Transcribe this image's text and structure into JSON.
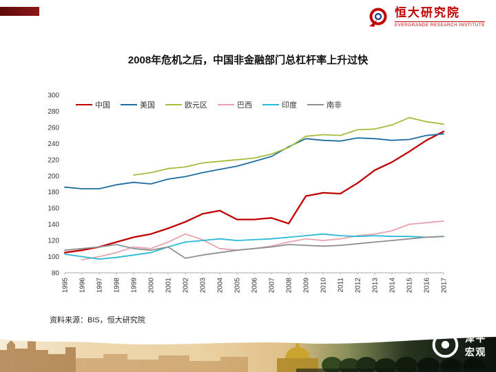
{
  "header": {
    "logo_cn": "恒大研究院",
    "logo_en": "EVERGRANDE RESEARCH INSTITUTE"
  },
  "slide": {
    "title": "2008年危机之后，中国非金融部门总杠杆率上升过快"
  },
  "chart_data": {
    "type": "line",
    "title": "2008年危机之后，中国非金融部门总杠杆率上升过快",
    "xlabel": "",
    "ylabel": "",
    "grid": false,
    "legend_position": "top",
    "ylim": [
      80,
      300
    ],
    "ytick_step": 20,
    "x": [
      1995,
      1996,
      1997,
      1998,
      1999,
      2000,
      2001,
      2002,
      2003,
      2004,
      2005,
      2006,
      2007,
      2008,
      2009,
      2010,
      2011,
      2012,
      2013,
      2014,
      2015,
      2016,
      2017
    ],
    "series": [
      {
        "name": "中国",
        "color": "#c00000",
        "values": [
          105,
          108,
          112,
          118,
          124,
          128,
          135,
          143,
          153,
          157,
          146,
          146,
          148,
          141,
          175,
          179,
          178,
          191,
          207,
          217,
          230,
          244,
          255
        ]
      },
      {
        "name": "美国",
        "color": "#1f6d9e",
        "values": [
          186,
          184,
          184,
          189,
          192,
          190,
          196,
          199,
          204,
          208,
          212,
          218,
          224,
          236,
          246,
          244,
          243,
          247,
          246,
          244,
          245,
          250,
          252
        ]
      },
      {
        "name": "欧元区",
        "color": "#a6bc3c",
        "values": [
          null,
          null,
          null,
          null,
          201,
          204,
          209,
          211,
          216,
          218,
          220,
          222,
          227,
          235,
          249,
          251,
          250,
          257,
          258,
          263,
          272,
          267,
          264
        ]
      },
      {
        "name": "巴西",
        "color": "#e6a3ad",
        "values": [
          null,
          96,
          100,
          105,
          112,
          110,
          118,
          128,
          121,
          110,
          108,
          110,
          113,
          118,
          122,
          120,
          122,
          126,
          128,
          132,
          140,
          142,
          144
        ]
      },
      {
        "name": "印度",
        "color": "#29b9d8",
        "values": [
          103,
          100,
          97,
          99,
          102,
          105,
          112,
          118,
          120,
          122,
          120,
          121,
          122,
          124,
          126,
          128,
          126,
          125,
          126,
          125,
          125,
          124,
          125
        ]
      },
      {
        "name": "南非",
        "color": "#8f8f8f",
        "values": [
          108,
          110,
          112,
          115,
          110,
          108,
          112,
          98,
          102,
          105,
          108,
          110,
          112,
          115,
          114,
          113,
          114,
          116,
          118,
          120,
          122,
          124,
          125
        ]
      }
    ]
  },
  "footer": {
    "source": "资料来源：BIS，恒大研究院",
    "watermark": "泽平宏观"
  }
}
